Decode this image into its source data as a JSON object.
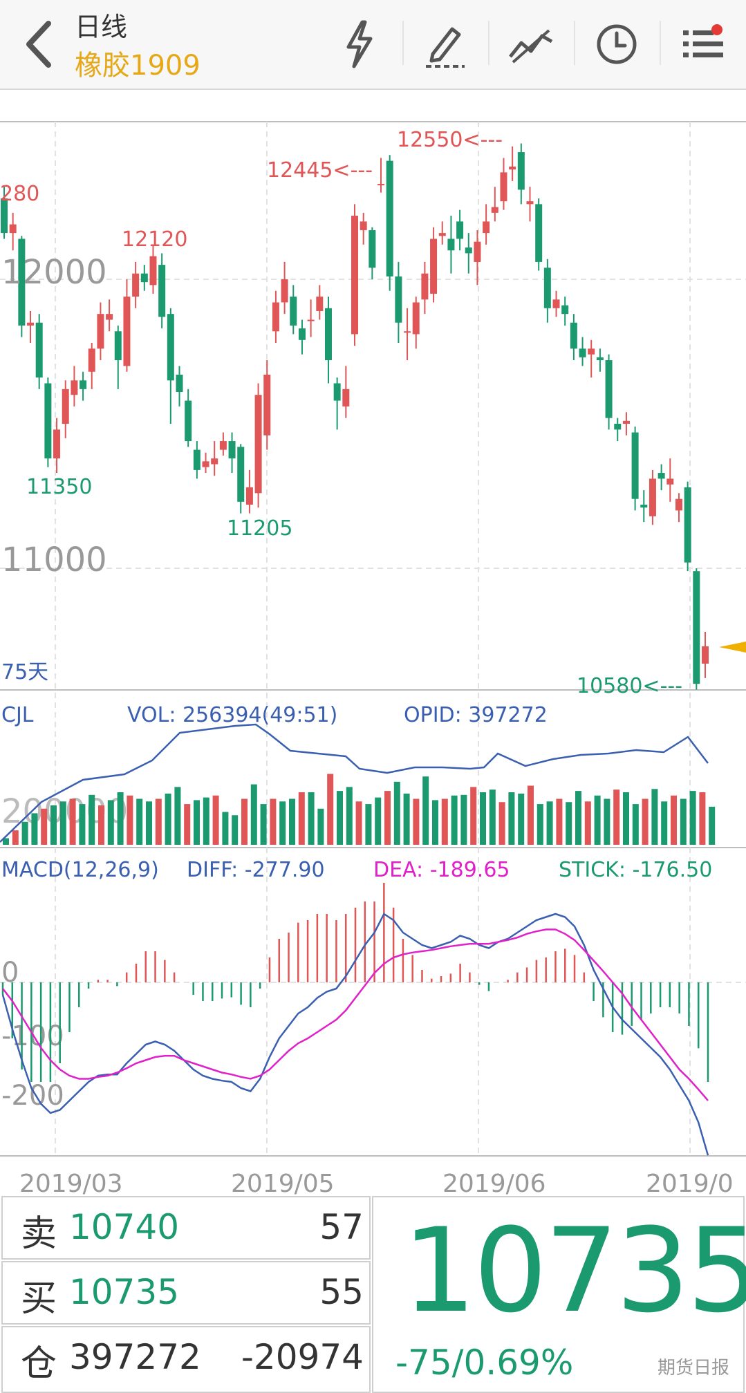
{
  "header": {
    "title": "日线",
    "subtitle": "橡胶1909",
    "icons": [
      "back-chevron-icon",
      "lightning-icon",
      "pencil-icon",
      "line-drawing-icon",
      "clock-icon",
      "menu-icon"
    ],
    "notification_dot_color": "#e53935"
  },
  "chart_data": [
    {
      "type": "candlestick",
      "title": "日线",
      "y_tick_labels": [
        "12000",
        "11000"
      ],
      "annotations": [
        "280",
        "12120",
        "12445<---",
        "12550<---",
        "11350",
        "11205",
        "10580<---",
        "75天"
      ],
      "up_color": "#e05555",
      "down_color": "#1a9a6e"
    },
    {
      "type": "bar",
      "title": "CJL",
      "labels": {
        "vol": "VOL: 256394(49:51)",
        "opid": "OPID: 397272"
      },
      "y_tick_labels": [
        "200000"
      ],
      "series": [
        {
          "name": "VOL",
          "values": [
            10,
            22,
            35,
            48,
            55,
            60,
            66,
            70,
            62,
            76,
            60,
            68,
            80,
            75,
            70,
            66,
            70,
            78,
            88,
            62,
            68,
            72,
            75,
            50,
            45,
            70,
            92,
            62,
            70,
            66,
            70,
            80,
            80,
            55,
            108,
            82,
            88,
            66,
            62,
            72,
            82,
            96,
            78,
            70,
            104,
            68,
            70,
            75,
            76,
            88,
            80,
            84,
            65,
            80,
            78,
            90,
            62,
            66,
            70,
            65,
            82,
            66,
            75,
            70,
            84,
            80,
            62,
            70,
            85,
            66,
            75,
            70,
            82,
            80,
            58
          ]
        },
        {
          "name": "OPID",
          "values": [
            397272
          ]
        }
      ]
    },
    {
      "type": "line",
      "title": "MACD(12,26,9)",
      "labels": {
        "diff": "DIFF: -277.90",
        "dea": "DEA: -189.65",
        "stick": "STICK: -176.50"
      },
      "y_tick_labels": [
        "0",
        "-100",
        "-200"
      ],
      "colors": {
        "diff": "#3a5fb0",
        "dea": "#e020c8",
        "stick_up": "#e05555",
        "stick_down": "#1a9a6e"
      },
      "series": [
        {
          "name": "DIFF",
          "values": [
            -20,
            -75,
            -125,
            -170,
            -195,
            -210,
            -205,
            -190,
            -175,
            -160,
            -150,
            -148,
            -148,
            -130,
            -115,
            -100,
            -95,
            -100,
            -110,
            -125,
            -140,
            -150,
            -155,
            -158,
            -160,
            -170,
            -175,
            -155,
            -120,
            -90,
            -70,
            -50,
            -40,
            -25,
            -15,
            -10,
            10,
            35,
            60,
            80,
            110,
            100,
            80,
            70,
            60,
            55,
            60,
            65,
            75,
            70,
            60,
            55,
            65,
            70,
            80,
            90,
            100,
            105,
            110,
            105,
            90,
            60,
            20,
            -10,
            -40,
            -60,
            -75,
            -90,
            -105,
            -120,
            -140,
            -165,
            -190,
            -225,
            -278
          ]
        },
        {
          "name": "DEA",
          "values": [
            -10,
            -30,
            -55,
            -80,
            -105,
            -125,
            -140,
            -150,
            -155,
            -155,
            -152,
            -150,
            -145,
            -138,
            -130,
            -125,
            -120,
            -118,
            -118,
            -125,
            -130,
            -135,
            -140,
            -145,
            -148,
            -152,
            -155,
            -150,
            -140,
            -125,
            -110,
            -98,
            -90,
            -80,
            -70,
            -60,
            -45,
            -25,
            -5,
            15,
            30,
            40,
            45,
            48,
            50,
            52,
            55,
            58,
            60,
            62,
            62,
            62,
            65,
            68,
            72,
            78,
            82,
            85,
            85,
            78,
            68,
            52,
            35,
            18,
            0,
            -18,
            -40,
            -60,
            -80,
            -100,
            -120,
            -140,
            -155,
            -172,
            -190
          ]
        }
      ]
    }
  ],
  "x_axis": {
    "dates": [
      "2019/03",
      "2019/05",
      "2019/06",
      "2019/0"
    ]
  },
  "quote": {
    "sell_label": "卖",
    "sell_price": "10740",
    "sell_qty": "57",
    "buy_label": "买",
    "buy_price": "10735",
    "buy_qty": "55",
    "open_interest_label": "仓",
    "open_interest": "397272",
    "oi_change": "-20974",
    "last_price": "10735",
    "change": "-75/0.69%"
  },
  "watermark": "期货日报",
  "colors": {
    "green": "#1a9a6e",
    "red": "#e05555",
    "gold": "#e6a817",
    "blue": "#3a5fb0",
    "magenta": "#e020c8"
  }
}
